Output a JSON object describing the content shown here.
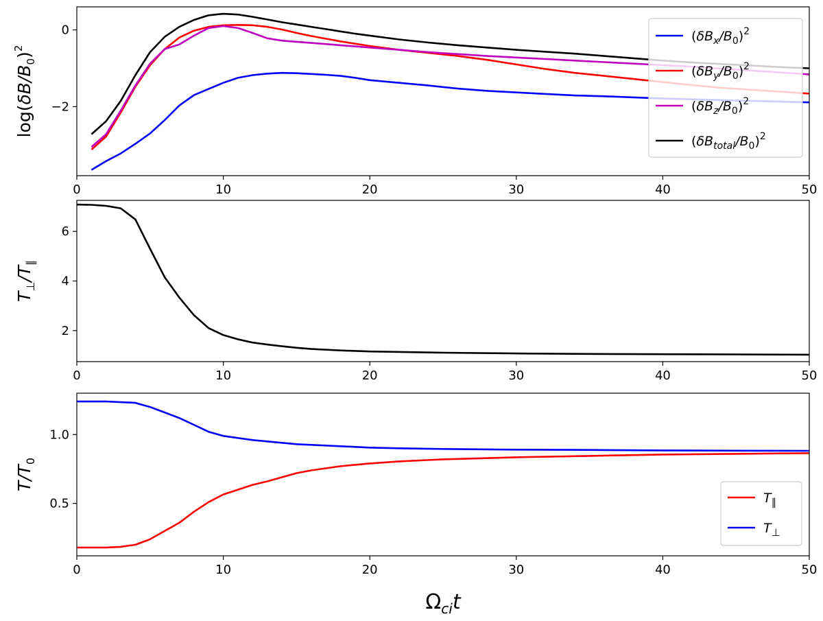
{
  "chart_data": [
    {
      "type": "line",
      "ylabel_html": "log(<tspan font-style='italic'>δB/B</tspan><tspan font-size='15' dy='6'>0</tspan><tspan dy='-6'>)</tspan><tspan font-size='15' dy='-12'>2</tspan>",
      "ylabel": "log(δB/B0)^2",
      "xlim": [
        0,
        50
      ],
      "ylim": [
        -3.8,
        0.6
      ],
      "xticks": [
        0,
        10,
        20,
        30,
        40,
        50
      ],
      "yticks": [
        0,
        -2
      ],
      "ytick_labels": [
        "0",
        "−2"
      ],
      "legend_position": "upper-right",
      "x": [
        1,
        2,
        3,
        4,
        5,
        6,
        7,
        8,
        9,
        10,
        11,
        12,
        13,
        14,
        15,
        16,
        17,
        18,
        19,
        20,
        22,
        24,
        26,
        28,
        30,
        32,
        34,
        36,
        38,
        40,
        42,
        44,
        46,
        48,
        50
      ],
      "series": [
        {
          "name": "(δBx/B0)^2",
          "legend_html": "(<tspan font-style='italic'>δB</tspan><tspan font-style='italic' font-size='14' dy='5'>x</tspan><tspan font-style='italic' dy='-5'>/B</tspan><tspan font-size='14' dy='5'>0</tspan><tspan dy='-5'>)</tspan><tspan font-size='14' dy='-9'>2</tspan>",
          "color": "#0000ff",
          "values": [
            -3.65,
            -3.42,
            -3.22,
            -2.97,
            -2.7,
            -2.35,
            -1.97,
            -1.7,
            -1.54,
            -1.38,
            -1.25,
            -1.18,
            -1.14,
            -1.12,
            -1.13,
            -1.15,
            -1.17,
            -1.2,
            -1.25,
            -1.31,
            -1.38,
            -1.45,
            -1.53,
            -1.59,
            -1.63,
            -1.67,
            -1.71,
            -1.73,
            -1.76,
            -1.79,
            -1.81,
            -1.83,
            -1.85,
            -1.87,
            -1.89
          ]
        },
        {
          "name": "(δBy/B0)^2",
          "legend_html": "(<tspan font-style='italic'>δB</tspan><tspan font-style='italic' font-size='14' dy='5'>y</tspan><tspan font-style='italic' dy='-5'>/B</tspan><tspan font-size='14' dy='5'>0</tspan><tspan dy='-5'>)</tspan><tspan font-size='14' dy='-9'>2</tspan>",
          "color": "#ff0000",
          "values": [
            -3.12,
            -2.78,
            -2.15,
            -1.48,
            -0.92,
            -0.5,
            -0.2,
            -0.02,
            0.08,
            0.12,
            0.13,
            0.12,
            0.08,
            0.01,
            -0.08,
            -0.16,
            -0.23,
            -0.3,
            -0.36,
            -0.42,
            -0.52,
            -0.6,
            -0.68,
            -0.78,
            -0.9,
            -1.02,
            -1.12,
            -1.2,
            -1.28,
            -1.36,
            -1.44,
            -1.51,
            -1.56,
            -1.61,
            -1.66
          ]
        },
        {
          "name": "(δBz/B0)^2",
          "legend_html": "(<tspan font-style='italic'>δB</tspan><tspan font-style='italic' font-size='14' dy='5'>z</tspan><tspan font-style='italic' dy='-5'>/B</tspan><tspan font-size='14' dy='5'>0</tspan><tspan dy='-5'>)</tspan><tspan font-size='14' dy='-9'>2</tspan>",
          "color": "#bf00bf",
          "values": [
            -3.05,
            -2.72,
            -2.1,
            -1.45,
            -0.88,
            -0.5,
            -0.38,
            -0.15,
            0.05,
            0.1,
            0.05,
            -0.08,
            -0.22,
            -0.28,
            -0.31,
            -0.34,
            -0.37,
            -0.4,
            -0.43,
            -0.46,
            -0.52,
            -0.58,
            -0.63,
            -0.68,
            -0.72,
            -0.76,
            -0.8,
            -0.84,
            -0.88,
            -0.92,
            -0.96,
            -1.01,
            -1.06,
            -1.11,
            -1.16
          ]
        },
        {
          "name": "(δBtotal/B0)^2",
          "legend_html": "(<tspan font-style='italic'>δB</tspan><tspan font-style='italic' font-size='14' dy='5'>total</tspan><tspan font-style='italic' dy='-5'>/B</tspan><tspan font-size='14' dy='5'>0</tspan><tspan dy='-5'>)</tspan><tspan font-size='14' dy='-9'>2</tspan>",
          "color": "#000000",
          "values": [
            -2.72,
            -2.38,
            -1.85,
            -1.18,
            -0.58,
            -0.18,
            0.08,
            0.26,
            0.38,
            0.42,
            0.4,
            0.34,
            0.27,
            0.2,
            0.14,
            0.08,
            0.02,
            -0.04,
            -0.1,
            -0.15,
            -0.25,
            -0.33,
            -0.4,
            -0.46,
            -0.52,
            -0.57,
            -0.62,
            -0.68,
            -0.74,
            -0.8,
            -0.85,
            -0.89,
            -0.93,
            -0.97,
            -1.0
          ]
        }
      ]
    },
    {
      "type": "line",
      "ylabel_html": "<tspan font-style='italic'>T</tspan><tspan font-size='16' dy='6'>⊥</tspan><tspan font-style='italic' dy='-6'>/T</tspan><tspan font-size='16' dy='6'>∥</tspan>",
      "ylabel": "T⊥/T∥",
      "xlim": [
        0,
        50
      ],
      "ylim": [
        0.75,
        7.25
      ],
      "xticks": [
        0,
        10,
        20,
        30,
        40,
        50
      ],
      "yticks": [
        2,
        4,
        6
      ],
      "ytick_labels": [
        "2",
        "4",
        "6"
      ],
      "x": [
        0,
        1,
        2,
        3,
        4,
        5,
        6,
        7,
        8,
        9,
        10,
        11,
        12,
        13,
        14,
        15,
        16,
        18,
        20,
        25,
        30,
        35,
        40,
        45,
        50
      ],
      "series": [
        {
          "name": "",
          "color": "#000000",
          "values": [
            7.08,
            7.07,
            7.03,
            6.93,
            6.48,
            5.3,
            4.15,
            3.33,
            2.62,
            2.1,
            1.82,
            1.65,
            1.52,
            1.44,
            1.37,
            1.31,
            1.26,
            1.2,
            1.16,
            1.11,
            1.08,
            1.06,
            1.05,
            1.04,
            1.03
          ]
        }
      ]
    },
    {
      "type": "line",
      "ylabel_html": "<tspan font-style='italic'>T/T</tspan><tspan font-size='16' dy='6'>0</tspan>",
      "ylabel": "T/T0",
      "xlabel_html": "Ω<tspan font-style='italic' font-size='20' dy='7'>ci</tspan><tspan font-style='italic' dy='-7'>t</tspan>",
      "xlabel": "Ωci t",
      "xlim": [
        0,
        50
      ],
      "ylim": [
        0.12,
        1.3
      ],
      "xticks": [
        0,
        10,
        20,
        30,
        40,
        50
      ],
      "yticks": [
        0.5,
        1.0
      ],
      "ytick_labels": [
        "0.5",
        "1.0"
      ],
      "legend_position": "lower-right",
      "x": [
        0,
        1,
        2,
        3,
        4,
        5,
        6,
        7,
        8,
        9,
        10,
        11,
        12,
        13,
        14,
        15,
        16,
        18,
        20,
        22,
        25,
        30,
        35,
        40,
        45,
        50
      ],
      "series": [
        {
          "name": "T∥",
          "legend_html": "<tspan font-style='italic'>T</tspan><tspan font-size='15' dy='5'>∥</tspan>",
          "color": "#ff0000",
          "values": [
            0.18,
            0.18,
            0.18,
            0.185,
            0.2,
            0.24,
            0.3,
            0.36,
            0.44,
            0.51,
            0.565,
            0.6,
            0.635,
            0.66,
            0.69,
            0.72,
            0.74,
            0.77,
            0.79,
            0.805,
            0.82,
            0.835,
            0.845,
            0.855,
            0.86,
            0.865
          ]
        },
        {
          "name": "T⊥",
          "legend_html": "<tspan font-style='italic'>T</tspan><tspan font-size='15' dy='5'>⊥</tspan>",
          "color": "#0000ff",
          "values": [
            1.24,
            1.24,
            1.24,
            1.235,
            1.23,
            1.2,
            1.16,
            1.12,
            1.07,
            1.02,
            0.99,
            0.975,
            0.96,
            0.95,
            0.94,
            0.93,
            0.925,
            0.915,
            0.905,
            0.9,
            0.895,
            0.89,
            0.888,
            0.885,
            0.883,
            0.882
          ]
        }
      ]
    }
  ]
}
